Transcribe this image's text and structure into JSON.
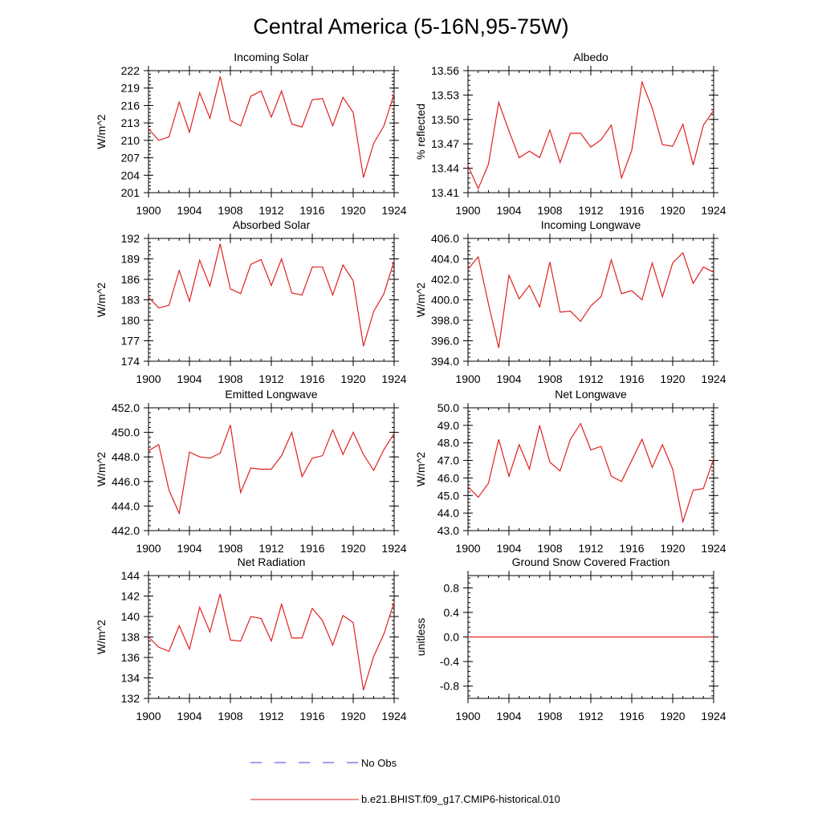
{
  "title": "Central America (5-16N,95-75W)",
  "legend": {
    "obs_label": "No Obs",
    "obs_color": "#3b3bd6",
    "model_label": "b.e21.BHIST.f09_g17.CMIP6-historical.010",
    "model_color": "#e02020"
  },
  "chart_data": [
    {
      "type": "line",
      "title": "Incoming Solar",
      "ylabel": "W/m^2",
      "xlim": [
        1900,
        1924
      ],
      "ylim": [
        201,
        222
      ],
      "yticks": [
        "201",
        "204",
        "207",
        "210",
        "213",
        "216",
        "219",
        "222"
      ],
      "xticks": [
        "1900",
        "1904",
        "1908",
        "1912",
        "1916",
        "1920",
        "1924"
      ],
      "series": [
        {
          "x": [
            1900,
            1901,
            1902,
            1903,
            1904,
            1905,
            1906,
            1907,
            1908,
            1909,
            1910,
            1911,
            1912,
            1913,
            1914,
            1915,
            1916,
            1917,
            1918,
            1919,
            1920,
            1921,
            1922,
            1923,
            1924
          ],
          "y": [
            212.0,
            210.0,
            210.6,
            216.6,
            211.4,
            218.2,
            213.8,
            221.0,
            213.4,
            212.5,
            217.6,
            218.5,
            214.0,
            218.5,
            212.8,
            212.3,
            217.0,
            217.2,
            212.5,
            217.4,
            214.8,
            203.6,
            209.5,
            212.5,
            218.0
          ]
        }
      ]
    },
    {
      "type": "line",
      "title": "Albedo",
      "ylabel": "% reflected",
      "xlim": [
        1900,
        1924
      ],
      "ylim": [
        13.41,
        13.56
      ],
      "yticks": [
        "13.41",
        "13.44",
        "13.47",
        "13.50",
        "13.53",
        "13.56"
      ],
      "xticks": [
        "1900",
        "1904",
        "1908",
        "1912",
        "1916",
        "1920",
        "1924"
      ],
      "series": [
        {
          "x": [
            1900,
            1901,
            1902,
            1903,
            1904,
            1905,
            1906,
            1907,
            1908,
            1909,
            1910,
            1911,
            1912,
            1913,
            1914,
            1915,
            1916,
            1917,
            1918,
            1919,
            1920,
            1921,
            1922,
            1923,
            1924
          ],
          "y": [
            13.443,
            13.415,
            13.445,
            13.521,
            13.486,
            13.453,
            13.461,
            13.453,
            13.487,
            13.447,
            13.483,
            13.483,
            13.466,
            13.475,
            13.493,
            13.428,
            13.462,
            13.546,
            13.514,
            13.469,
            13.467,
            13.494,
            13.444,
            13.493,
            13.511
          ]
        }
      ]
    },
    {
      "type": "line",
      "title": "Absorbed Solar",
      "ylabel": "W/m^2",
      "xlim": [
        1900,
        1924
      ],
      "ylim": [
        174,
        192
      ],
      "yticks": [
        "174",
        "177",
        "180",
        "183",
        "186",
        "189",
        "192"
      ],
      "xticks": [
        "1900",
        "1904",
        "1908",
        "1912",
        "1916",
        "1920",
        "1924"
      ],
      "series": [
        {
          "x": [
            1900,
            1901,
            1902,
            1903,
            1904,
            1905,
            1906,
            1907,
            1908,
            1909,
            1910,
            1911,
            1912,
            1913,
            1914,
            1915,
            1916,
            1917,
            1918,
            1919,
            1920,
            1921,
            1922,
            1923,
            1924
          ],
          "y": [
            183.4,
            181.8,
            182.2,
            187.3,
            182.8,
            188.8,
            185.0,
            191.2,
            184.6,
            183.9,
            188.2,
            188.9,
            185.1,
            189.0,
            184.0,
            183.7,
            187.8,
            187.8,
            183.7,
            188.1,
            185.8,
            176.2,
            181.3,
            183.9,
            188.7
          ]
        }
      ]
    },
    {
      "type": "line",
      "title": "Incoming Longwave",
      "ylabel": "W/m^2",
      "xlim": [
        1900,
        1924
      ],
      "ylim": [
        394.0,
        406.0
      ],
      "yticks": [
        "394.0",
        "396.0",
        "398.0",
        "400.0",
        "402.0",
        "404.0",
        "406.0"
      ],
      "xticks": [
        "1900",
        "1904",
        "1908",
        "1912",
        "1916",
        "1920",
        "1924"
      ],
      "series": [
        {
          "x": [
            1900,
            1901,
            1902,
            1903,
            1904,
            1905,
            1906,
            1907,
            1908,
            1909,
            1910,
            1911,
            1912,
            1913,
            1914,
            1915,
            1916,
            1917,
            1918,
            1919,
            1920,
            1921,
            1922,
            1923,
            1924
          ],
          "y": [
            403.0,
            404.2,
            399.6,
            395.3,
            402.4,
            400.1,
            401.4,
            399.3,
            403.7,
            398.8,
            398.9,
            397.9,
            399.4,
            400.3,
            403.9,
            400.6,
            400.9,
            400.0,
            403.6,
            400.3,
            403.6,
            404.6,
            401.6,
            403.2,
            402.7
          ]
        }
      ]
    },
    {
      "type": "line",
      "title": "Emitted Longwave",
      "ylabel": "W/m^2",
      "xlim": [
        1900,
        1924
      ],
      "ylim": [
        442.0,
        452.0
      ],
      "yticks": [
        "442.0",
        "444.0",
        "446.0",
        "448.0",
        "450.0",
        "452.0"
      ],
      "xticks": [
        "1900",
        "1904",
        "1908",
        "1912",
        "1916",
        "1920",
        "1924"
      ],
      "series": [
        {
          "x": [
            1900,
            1901,
            1902,
            1903,
            1904,
            1905,
            1906,
            1907,
            1908,
            1909,
            1910,
            1911,
            1912,
            1913,
            1914,
            1915,
            1916,
            1917,
            1918,
            1919,
            1920,
            1921,
            1922,
            1923,
            1924
          ],
          "y": [
            448.5,
            449.0,
            445.3,
            443.4,
            448.4,
            448.0,
            447.9,
            448.3,
            450.6,
            445.1,
            447.1,
            447.0,
            447.0,
            448.1,
            450.0,
            446.4,
            447.9,
            448.1,
            450.2,
            448.2,
            450.0,
            448.2,
            446.9,
            448.6,
            449.9
          ]
        }
      ]
    },
    {
      "type": "line",
      "title": "Net Longwave",
      "ylabel": "W/m^2",
      "xlim": [
        1900,
        1924
      ],
      "ylim": [
        43.0,
        50.0
      ],
      "yticks": [
        "43.0",
        "44.0",
        "45.0",
        "46.0",
        "47.0",
        "48.0",
        "49.0",
        "50.0"
      ],
      "xticks": [
        "1900",
        "1904",
        "1908",
        "1912",
        "1916",
        "1920",
        "1924"
      ],
      "series": [
        {
          "x": [
            1900,
            1901,
            1902,
            1903,
            1904,
            1905,
            1906,
            1907,
            1908,
            1909,
            1910,
            1911,
            1912,
            1913,
            1914,
            1915,
            1916,
            1917,
            1918,
            1919,
            1920,
            1921,
            1922,
            1923,
            1924
          ],
          "y": [
            45.5,
            44.9,
            45.7,
            48.2,
            46.1,
            47.9,
            46.5,
            49.0,
            46.9,
            46.4,
            48.2,
            49.1,
            47.6,
            47.8,
            46.1,
            45.8,
            47.0,
            48.2,
            46.6,
            47.9,
            46.5,
            43.5,
            45.3,
            45.4,
            47.1
          ]
        }
      ]
    },
    {
      "type": "line",
      "title": "Net Radiation",
      "ylabel": "W/m^2",
      "xlim": [
        1900,
        1924
      ],
      "ylim": [
        132,
        144
      ],
      "yticks": [
        "132",
        "134",
        "136",
        "138",
        "140",
        "142",
        "144"
      ],
      "xticks": [
        "1900",
        "1904",
        "1908",
        "1912",
        "1916",
        "1920",
        "1924"
      ],
      "series": [
        {
          "x": [
            1900,
            1901,
            1902,
            1903,
            1904,
            1905,
            1906,
            1907,
            1908,
            1909,
            1910,
            1911,
            1912,
            1913,
            1914,
            1915,
            1916,
            1917,
            1918,
            1919,
            1920,
            1921,
            1922,
            1923,
            1924
          ],
          "y": [
            138.0,
            137.0,
            136.6,
            139.1,
            136.8,
            140.9,
            138.5,
            142.2,
            137.7,
            137.6,
            140.0,
            139.8,
            137.6,
            141.2,
            137.9,
            137.9,
            140.8,
            139.6,
            137.2,
            140.1,
            139.4,
            132.8,
            136.1,
            138.3,
            141.4
          ]
        }
      ]
    },
    {
      "type": "line",
      "title": "Ground Snow Covered Fraction",
      "ylabel": "unitless",
      "xlim": [
        1900,
        1924
      ],
      "ylim": [
        -1.0,
        1.0
      ],
      "yticks": [
        "-0.8",
        "-0.4",
        "0.0",
        "0.4",
        "0.8"
      ],
      "ytick_values": [
        -0.8,
        -0.4,
        0.0,
        0.4,
        0.8
      ],
      "xticks": [
        "1900",
        "1904",
        "1908",
        "1912",
        "1916",
        "1920",
        "1924"
      ],
      "series": [
        {
          "x": [
            1900,
            1924
          ],
          "y": [
            0.0,
            0.0
          ]
        }
      ]
    }
  ]
}
